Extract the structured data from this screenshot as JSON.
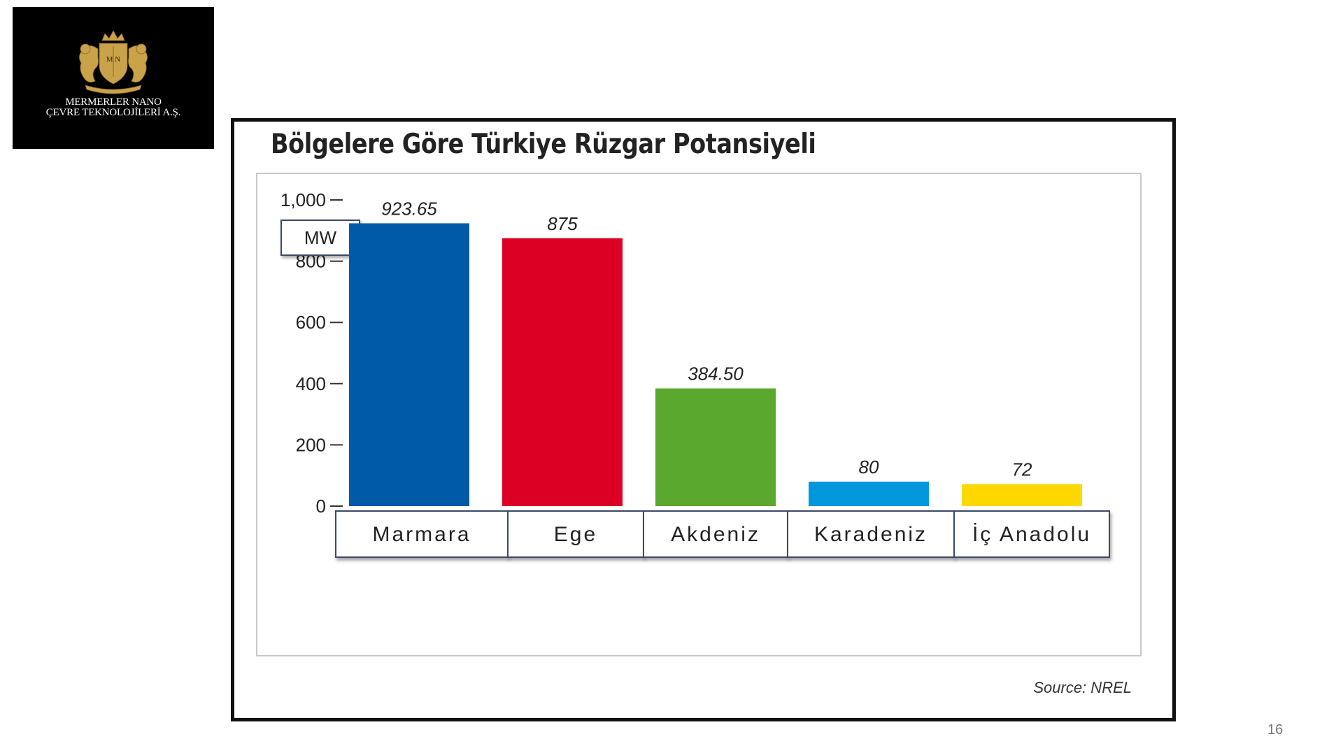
{
  "logo": {
    "monogram": "M N",
    "line1": "MERMERLER NANO",
    "line2": "ÇEVRE TEKNOLOJİLERİ A.Ş.",
    "gold": "#c9a24a"
  },
  "chart_data": {
    "type": "bar",
    "title": "Bölgelere Göre Türkiye Rüzgar Potansiyeli",
    "ylabel": "MW",
    "xlabel": "",
    "ylim": [
      0,
      1000
    ],
    "yticks": [
      0,
      200,
      400,
      600,
      800,
      1000
    ],
    "ytick_labels": [
      "0",
      "200",
      "400",
      "600",
      "800",
      "1,000"
    ],
    "categories": [
      "Marmara",
      "Ege",
      "Akdeniz",
      "Karadeniz",
      "İç Anadolu"
    ],
    "values": [
      923.65,
      875,
      384.5,
      80,
      72
    ],
    "value_labels": [
      "923.65",
      "875",
      "384.50",
      "80",
      "72"
    ],
    "colors": [
      "#005aa8",
      "#dc0025",
      "#5aa82e",
      "#0097dc",
      "#ffd800"
    ],
    "grid": false,
    "legend": "none",
    "source": "Source: NREL"
  },
  "page_number": "16"
}
